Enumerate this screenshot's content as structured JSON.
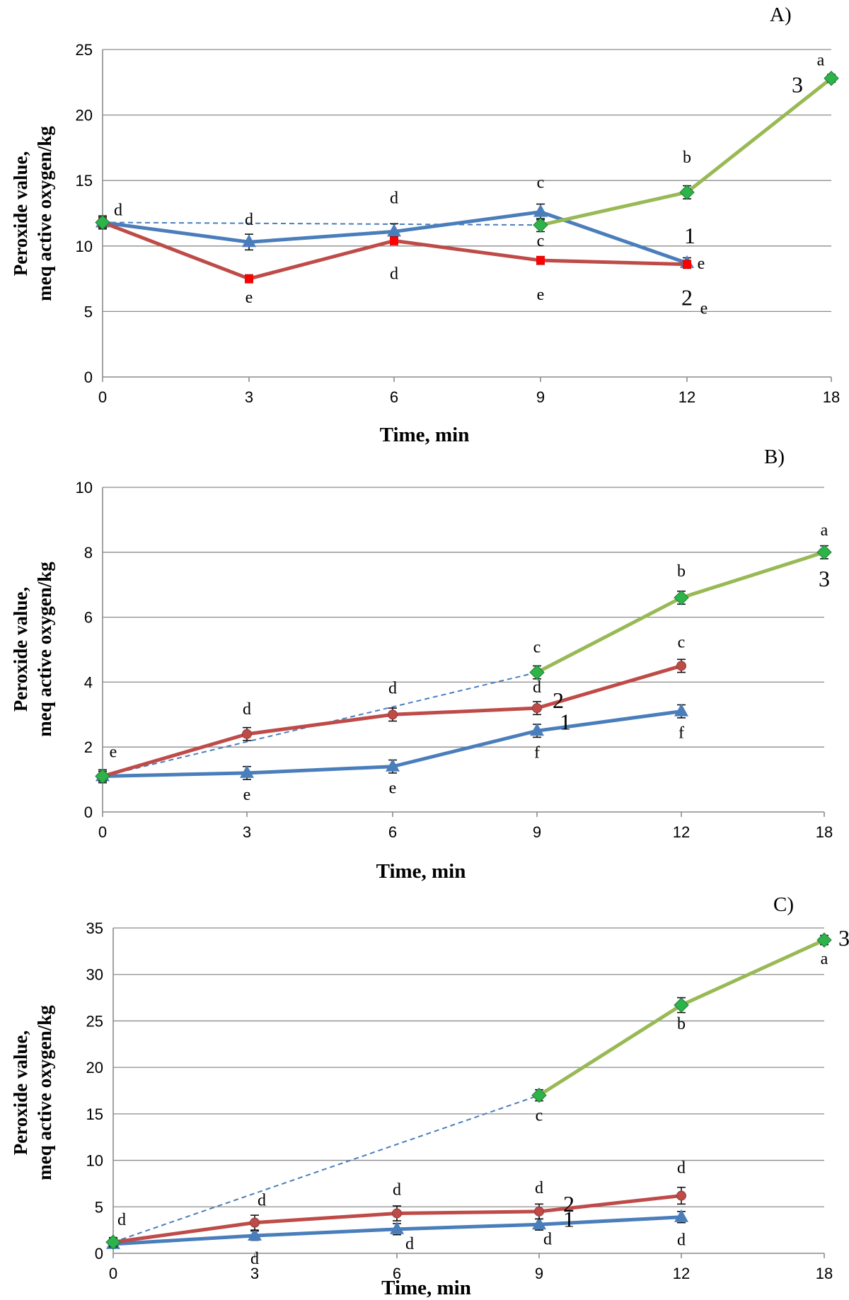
{
  "colors": {
    "series_1": "#4a7ebb",
    "series_2": "#be4b48",
    "series_3": "#98b954",
    "series_3_marker": "#2db34a",
    "series_2_marker_A": "#ff0000",
    "dashed": "#4a7ebb"
  },
  "chart_data": [
    {
      "type": "line",
      "panel_label": "A)",
      "xlabel": "Time,  min",
      "ylabel_line1": "Peroxide value,",
      "ylabel_line2": "meq active oxygen/kg",
      "categories": [
        "0",
        "3",
        "6",
        "9",
        "12",
        "18"
      ],
      "ylim": [
        0,
        25
      ],
      "yticks": [
        "0",
        "5",
        "10",
        "15",
        "20",
        "25"
      ],
      "grid": true,
      "series": [
        {
          "name": "1",
          "marker": "triangle",
          "values": [
            11.8,
            10.3,
            11.1,
            12.6,
            8.7,
            null
          ],
          "errors": [
            0.5,
            0.6,
            0.6,
            0.6,
            0.4,
            null
          ],
          "letters": [
            "d",
            "d",
            "d",
            "c",
            "e",
            null
          ]
        },
        {
          "name": "2",
          "marker": "square",
          "values": [
            11.8,
            7.5,
            10.4,
            8.9,
            8.6,
            null
          ],
          "errors": [
            0.3,
            0.3,
            0.3,
            0.3,
            0.3,
            null
          ],
          "letters": [
            null,
            "e",
            "d",
            "e",
            "e",
            null
          ]
        },
        {
          "name": "3",
          "marker": "diamond",
          "values": [
            11.8,
            null,
            null,
            11.6,
            14.1,
            22.8
          ],
          "errors": [
            0.4,
            null,
            null,
            0.5,
            0.5,
            0.3
          ],
          "letters": [
            null,
            null,
            null,
            "c",
            "b",
            "a"
          ],
          "dashed_segment": [
            0,
            3
          ]
        }
      ]
    },
    {
      "type": "line",
      "panel_label": "B)",
      "xlabel": "Time, min",
      "ylabel_line1": "Peroxide value,",
      "ylabel_line2": "meq active oxygen/kg",
      "categories": [
        "0",
        "3",
        "6",
        "9",
        "12",
        "18"
      ],
      "ylim": [
        0,
        10
      ],
      "yticks": [
        "0",
        "2",
        "4",
        "6",
        "8",
        "10"
      ],
      "grid": true,
      "series": [
        {
          "name": "1",
          "marker": "triangle",
          "values": [
            1.1,
            1.2,
            1.4,
            2.5,
            3.1,
            null
          ],
          "errors": [
            0.2,
            0.2,
            0.2,
            0.2,
            0.2,
            null
          ],
          "letters": [
            null,
            "e",
            "e",
            "f",
            "f",
            null
          ]
        },
        {
          "name": "2",
          "marker": "circle",
          "values": [
            1.1,
            2.4,
            3.0,
            3.2,
            4.5,
            null
          ],
          "errors": [
            0.15,
            0.2,
            0.2,
            0.2,
            0.2,
            null
          ],
          "letters": [
            "e",
            "d",
            "d",
            "d",
            "c",
            null
          ]
        },
        {
          "name": "3",
          "marker": "diamond",
          "values": [
            1.1,
            null,
            null,
            4.3,
            6.6,
            8.0
          ],
          "errors": [
            0.15,
            null,
            null,
            0.2,
            0.2,
            0.2
          ],
          "letters": [
            null,
            null,
            null,
            "c",
            "b",
            "a"
          ],
          "dashed_segment": [
            0,
            3
          ]
        }
      ]
    },
    {
      "type": "line",
      "panel_label": "C)",
      "xlabel": "Time, min",
      "ylabel_line1": "Peroxide value,",
      "ylabel_line2": "meq active oxygen/kg",
      "categories": [
        "0",
        "3",
        "6",
        "9",
        "12",
        "18"
      ],
      "ylim": [
        0,
        35
      ],
      "yticks": [
        "0",
        "5",
        "10",
        "15",
        "20",
        "25",
        "30",
        "35"
      ],
      "grid": true,
      "series": [
        {
          "name": "1",
          "marker": "triangle",
          "values": [
            1.0,
            1.9,
            2.6,
            3.1,
            3.9,
            null
          ],
          "errors": [
            0.4,
            0.5,
            0.6,
            0.6,
            0.6,
            null
          ],
          "letters": [
            null,
            "d",
            "d",
            "d",
            "d",
            null
          ]
        },
        {
          "name": "2",
          "marker": "circle",
          "values": [
            1.2,
            3.3,
            4.3,
            4.5,
            6.2,
            null
          ],
          "errors": [
            0.5,
            0.8,
            0.8,
            0.8,
            0.9,
            null
          ],
          "letters": [
            "d",
            "d",
            "d",
            "d",
            "d",
            null
          ]
        },
        {
          "name": "3",
          "marker": "diamond",
          "values": [
            1.2,
            null,
            null,
            17.0,
            26.7,
            33.7
          ],
          "errors": [
            0.4,
            null,
            null,
            0.6,
            0.8,
            0.5
          ],
          "letters": [
            null,
            null,
            null,
            "c",
            "b",
            "a"
          ],
          "dashed_segment": [
            0,
            3
          ]
        }
      ]
    }
  ]
}
